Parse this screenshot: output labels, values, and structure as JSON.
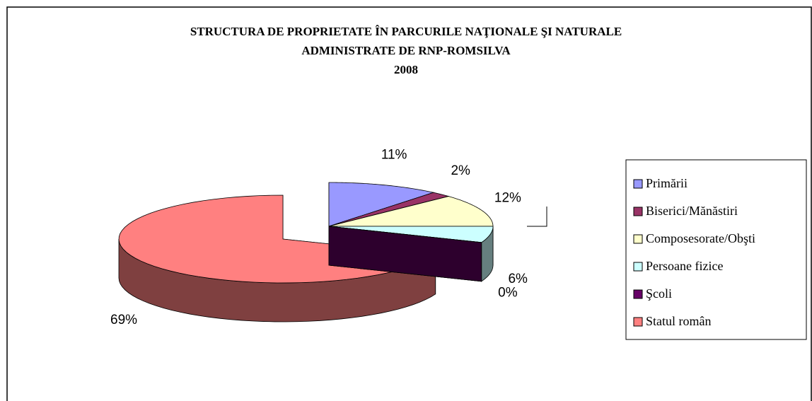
{
  "chart_data": {
    "type": "pie",
    "title": [
      "STRUCTURA DE PROPRIETATE ÎN PARCURILE NAŢIONALE ŞI NATURALE",
      "ADMINISTRATE DE RNP-ROMSILVA",
      "2008"
    ],
    "categories": [
      "Primării",
      "Biserici/Mănăstiri",
      "Composesorate/Obşti",
      "Persoane fizice",
      "Şcoli",
      "Statul român"
    ],
    "values": [
      11,
      2,
      12,
      6,
      0,
      69
    ],
    "value_labels": [
      "11%",
      "2%",
      "12%",
      "6%",
      "0%",
      "69%"
    ],
    "colors": [
      "#9999ff",
      "#993366",
      "#ffffcc",
      "#ccffff",
      "#660066",
      "#ff8080"
    ],
    "legend": "right"
  }
}
